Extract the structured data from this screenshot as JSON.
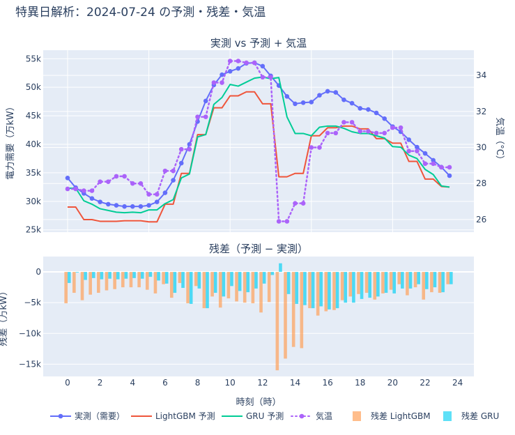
{
  "chart_data": [
    {
      "type": "line",
      "title": "特異日解析：2024-07-24 の予測・残差・気温",
      "subtitle": "実測 vs 予測 + 気温",
      "ylabel": "電力需要（万kW）",
      "y2label": "気温（°C）",
      "ylim": [
        24.6,
        56.5
      ],
      "y2lim": [
        25.3,
        35.4
      ],
      "xlim": [
        -1.5,
        25
      ],
      "yticks": [
        "25k",
        "30k",
        "35k",
        "40k",
        "45k",
        "50k",
        "55k"
      ],
      "y2ticks": [
        "26",
        "28",
        "30",
        "32",
        "34"
      ],
      "grid": true,
      "x": [
        0,
        0.5,
        1,
        1.5,
        2,
        2.5,
        3,
        3.5,
        4,
        4.5,
        5,
        5.5,
        6,
        6.5,
        7,
        7.5,
        8,
        8.5,
        9,
        9.5,
        10,
        10.5,
        11,
        11.5,
        12,
        12.5,
        13,
        13.5,
        14,
        14.5,
        15,
        15.5,
        16,
        16.5,
        17,
        17.5,
        18,
        18.5,
        19,
        19.5,
        20,
        20.5,
        21,
        21.5,
        22,
        22.5,
        23,
        23.5
      ],
      "series": [
        {
          "name": "実測（需要）",
          "axis": "y",
          "color": "#636efa",
          "style": "lines+markers",
          "unit": "k",
          "values": [
            34.1,
            32.4,
            31.4,
            30.5,
            29.9,
            29.5,
            29.3,
            29.1,
            29.1,
            29.1,
            29.3,
            29.9,
            31.5,
            33.7,
            36.7,
            40.0,
            44.0,
            47.6,
            50.4,
            52.2,
            52.8,
            53.3,
            54.2,
            54.3,
            53.7,
            52.0,
            50.3,
            48.4,
            47.1,
            47.3,
            47.4,
            48.6,
            49.3,
            49.1,
            47.8,
            47.2,
            46.3,
            46.1,
            45.5,
            44.5,
            43.1,
            42.2,
            40.8,
            39.5,
            38.4,
            37.2,
            36.0,
            34.5
          ]
        },
        {
          "name": "LightGBM 予測",
          "axis": "y",
          "color": "#ef553b",
          "style": "lines",
          "unit": "k",
          "values": [
            29.0,
            29.0,
            26.8,
            26.8,
            26.5,
            26.5,
            26.5,
            26.6,
            26.6,
            26.6,
            26.4,
            26.4,
            29.5,
            29.5,
            34.9,
            34.9,
            41.7,
            41.7,
            46.4,
            46.4,
            48.5,
            48.5,
            49.2,
            49.2,
            47.1,
            47.1,
            34.3,
            34.3,
            34.9,
            34.9,
            41.5,
            41.5,
            42.9,
            42.9,
            43.2,
            43.2,
            42.7,
            42.7,
            41.0,
            41.0,
            40.2,
            40.2,
            37.0,
            37.0,
            33.9,
            33.9,
            32.6,
            32.5
          ]
        },
        {
          "name": "GRU 予測",
          "axis": "y",
          "color": "#00cc96",
          "style": "lines",
          "unit": "k",
          "values": [
            32.3,
            32.3,
            30.1,
            29.5,
            28.7,
            28.4,
            28.1,
            28.0,
            28.1,
            28.0,
            28.5,
            28.5,
            29.6,
            30.3,
            34.1,
            34.8,
            41.3,
            41.7,
            47.0,
            48.2,
            50.5,
            50.2,
            50.9,
            51.6,
            51.8,
            51.5,
            51.7,
            44.8,
            41.9,
            41.9,
            41.5,
            43.0,
            43.2,
            43.2,
            42.8,
            42.2,
            41.9,
            41.9,
            41.5,
            41.1,
            39.6,
            39.5,
            38.1,
            37.5,
            35.6,
            34.7,
            32.7,
            32.5
          ]
        },
        {
          "name": "気温",
          "axis": "y2",
          "color": "#ab63fa",
          "style": "dotted lines+markers",
          "values": [
            27.7,
            27.7,
            27.6,
            27.6,
            28.1,
            28.1,
            28.4,
            28.4,
            28.0,
            28.0,
            27.4,
            27.4,
            28.7,
            28.7,
            29.9,
            29.9,
            31.7,
            31.7,
            33.6,
            33.6,
            34.8,
            34.8,
            34.7,
            34.7,
            33.9,
            33.9,
            25.9,
            25.9,
            26.9,
            26.9,
            30.0,
            30.0,
            30.8,
            30.8,
            31.4,
            31.4,
            30.9,
            30.9,
            30.8,
            30.8,
            31.1,
            31.1,
            29.8,
            29.8,
            29.1,
            29.1,
            28.9,
            28.9
          ]
        }
      ]
    },
    {
      "type": "bar",
      "title": "残差（予測 − 実測）",
      "xlabel": "時刻（時）",
      "ylabel": "残差（万kW）",
      "ylim": [
        -17,
        2.5
      ],
      "xlim": [
        -1.5,
        25
      ],
      "yticks": [
        "0",
        "−5k",
        "−10k",
        "−15k"
      ],
      "xticks": [
        "0",
        "2",
        "4",
        "6",
        "8",
        "10",
        "12",
        "14",
        "16",
        "18",
        "20",
        "22",
        "24"
      ],
      "grid": true,
      "series": [
        {
          "name": "残差 LightGBM",
          "color": "#ffa15a",
          "values": [
            -5.1,
            -3.4,
            -4.6,
            -3.7,
            -3.4,
            -3.0,
            -2.8,
            -2.5,
            -2.5,
            -2.5,
            -2.9,
            -3.5,
            -2.0,
            -4.2,
            -1.8,
            -5.1,
            -2.3,
            -5.9,
            -4.0,
            -5.8,
            -4.3,
            -4.8,
            -5.0,
            -5.1,
            -6.6,
            -4.9,
            -16.0,
            -14.1,
            -12.2,
            -12.4,
            -5.9,
            -7.1,
            -6.4,
            -6.2,
            -4.6,
            -4.0,
            -3.6,
            -3.4,
            -4.5,
            -3.5,
            -2.9,
            -2.0,
            -3.8,
            -2.5,
            -4.5,
            -3.3,
            -3.4,
            -2.0
          ]
        },
        {
          "name": "残差 GRU",
          "color": "#19d3f3",
          "values": [
            -1.8,
            -0.1,
            -1.3,
            -1.0,
            -1.2,
            -1.1,
            -1.2,
            -1.1,
            -1.0,
            -1.1,
            -0.8,
            -1.4,
            -1.9,
            -3.4,
            -2.6,
            -5.2,
            -2.7,
            -5.9,
            -3.4,
            -4.0,
            -2.3,
            -3.1,
            -3.3,
            -2.7,
            -1.9,
            -0.5,
            1.4,
            -3.6,
            -5.2,
            -5.4,
            -5.9,
            -5.6,
            -6.1,
            -5.9,
            -5.0,
            -5.0,
            -4.4,
            -4.2,
            -4.0,
            -3.4,
            -3.5,
            -2.7,
            -2.7,
            -2.0,
            -2.8,
            -2.5,
            -3.3,
            -2.0
          ]
        }
      ]
    }
  ],
  "colors": {
    "plot_bg": "#e5ecf6",
    "grid": "#ffffff",
    "text": "#2a3f5f"
  }
}
